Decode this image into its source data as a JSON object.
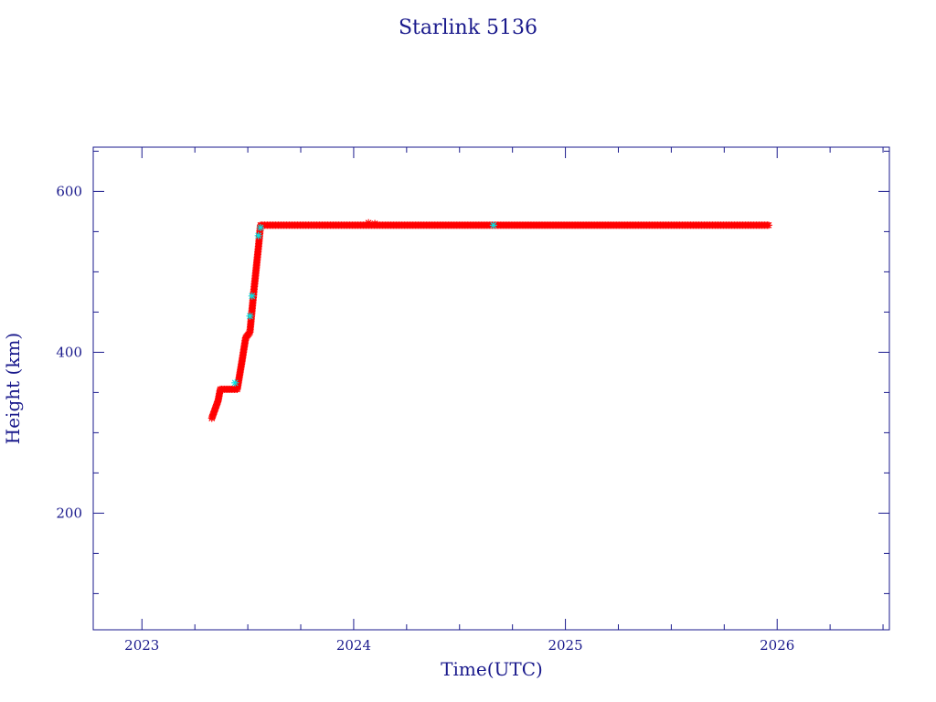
{
  "chart_data": {
    "type": "scatter",
    "title": "Starlink 5136",
    "xlabel": "Time(UTC)",
    "ylabel": "Height (km)",
    "xlim": [
      2022.77,
      2026.53
    ],
    "ylim": [
      55,
      655
    ],
    "x_ticks": [
      {
        "value": 2023,
        "label": "2023"
      },
      {
        "value": 2024,
        "label": "2024"
      },
      {
        "value": 2025,
        "label": "2025"
      },
      {
        "value": 2026,
        "label": "2026"
      }
    ],
    "x_minor_step": 0.25,
    "y_ticks": [
      {
        "value": 200,
        "label": "200"
      },
      {
        "value": 400,
        "label": "400"
      },
      {
        "value": 600,
        "label": "600"
      }
    ],
    "y_minor_step": 50,
    "grid": false,
    "colors": {
      "frame": "#1a1a8c",
      "text": "#1a1a8c",
      "primary": "#ff0000",
      "secondary": "#00e5e5"
    },
    "series": [
      {
        "marker": "star",
        "color": "#ff0000",
        "segments": [
          [
            [
              2023.33,
              318
            ],
            [
              2023.36,
              340
            ],
            [
              2023.37,
              354
            ],
            [
              2023.45,
              354
            ],
            [
              2023.47,
              385
            ],
            [
              2023.49,
              418
            ],
            [
              2023.51,
              425
            ],
            [
              2023.53,
              480
            ],
            [
              2023.55,
              530
            ],
            [
              2023.56,
              558
            ],
            [
              2024.66,
              558
            ],
            [
              2025.96,
              558
            ]
          ]
        ],
        "extra_points": [
          [
            2024.07,
            561
          ],
          [
            2024.1,
            560
          ]
        ]
      },
      {
        "marker": "star",
        "color": "#00e5e5",
        "segments": [],
        "extra_points": [
          [
            2023.44,
            362
          ],
          [
            2023.51,
            445
          ],
          [
            2023.52,
            470
          ],
          [
            2023.55,
            545
          ],
          [
            2023.56,
            555
          ],
          [
            2024.66,
            558
          ]
        ]
      }
    ]
  }
}
